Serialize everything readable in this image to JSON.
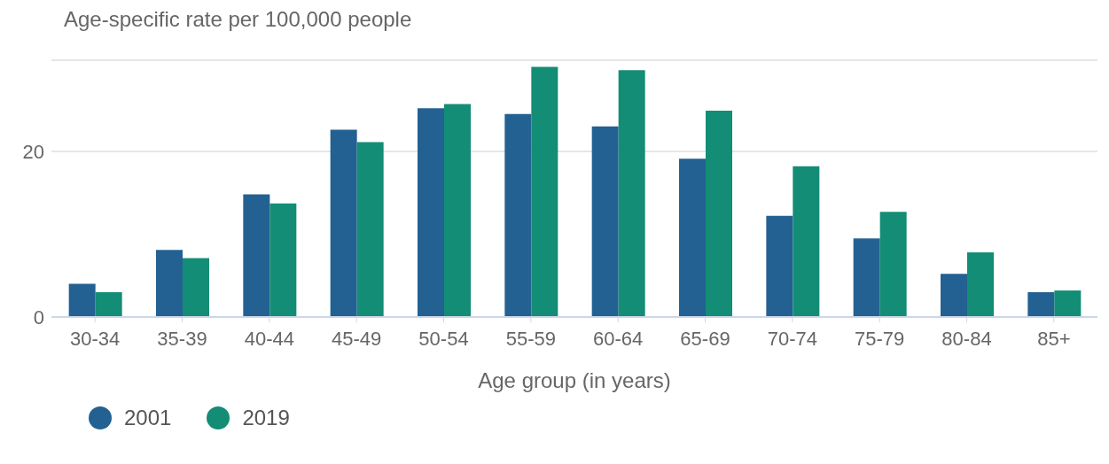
{
  "chart_data": {
    "type": "bar",
    "ylabel": "Age-specific rate per 100,000 people",
    "xlabel": "Age group (in years)",
    "categories": [
      "30-34",
      "35-39",
      "40-44",
      "45-49",
      "50-54",
      "55-59",
      "60-64",
      "65-69",
      "70-74",
      "75-79",
      "80-84",
      "85+"
    ],
    "series": [
      {
        "name": "2001",
        "color": "#236192",
        "values": [
          4.0,
          8.1,
          14.8,
          22.6,
          25.2,
          24.5,
          23.0,
          19.1,
          12.2,
          9.5,
          5.2,
          3.0
        ]
      },
      {
        "name": "2019",
        "color": "#138d75",
        "values": [
          3.0,
          7.1,
          13.7,
          21.1,
          25.7,
          30.2,
          29.8,
          24.9,
          18.2,
          12.7,
          7.8,
          3.2
        ]
      }
    ],
    "ylim": [
      0,
      31
    ],
    "yticks": [
      0,
      20
    ],
    "grid": "y",
    "legend": "bottom left"
  }
}
